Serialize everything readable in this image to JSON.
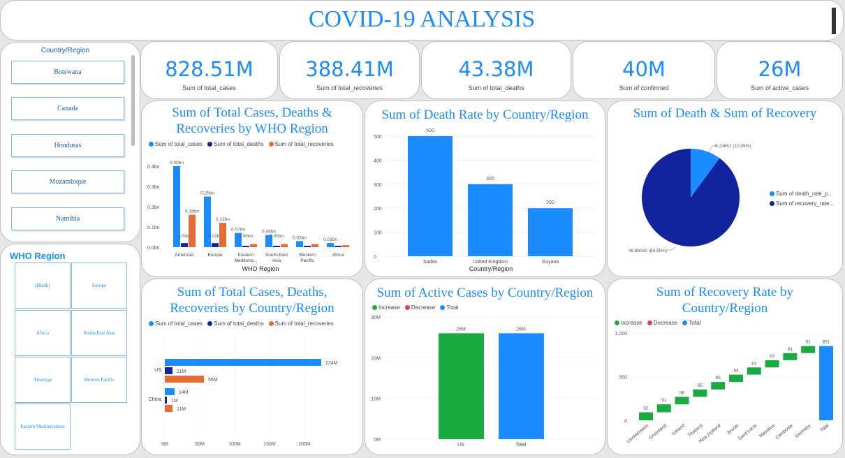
{
  "header": {
    "title": "COVID-19 ANALYSIS"
  },
  "country_slicer": {
    "title": "Country/Region",
    "items": [
      "Botswana",
      "Canada",
      "Honduras",
      "Mozambique",
      "Namibia"
    ]
  },
  "who_slicer": {
    "title": "WHO Region",
    "items": [
      "(Blank)",
      "Europe",
      "Africa",
      "South-East Asia",
      "Americas",
      "Western Pacific",
      "Eastern Mediterranean"
    ]
  },
  "kpis": [
    {
      "value": "828.51M",
      "label": "Sum of total_cases"
    },
    {
      "value": "388.41M",
      "label": "Sum of total_recoveries"
    },
    {
      "value": "43.38M",
      "label": "Sum of total_deaths"
    },
    {
      "value": "40M",
      "label": "Sum of confirmed"
    },
    {
      "value": "26M",
      "label": "Sum of active_cases"
    }
  ],
  "colors": {
    "accent": "#1a8cff",
    "navy": "#12239e",
    "orange": "#e66c37",
    "green": "#1aab40",
    "red": "#d64550"
  },
  "chart_data": [
    {
      "type": "bar",
      "title": "Sum of Total Cases, Deaths & Recoveries by WHO Region",
      "xlabel": "WHO Region",
      "categories": [
        "Americas",
        "Europe",
        "Eastern Mediterra...",
        "South-East Asia",
        "Western Pacific",
        "Africa"
      ],
      "series": [
        {
          "name": "Sum of total_cases",
          "values": [
            0.4,
            0.25,
            0.07,
            0.06,
            0.03,
            0.02
          ],
          "labels": [
            "0.40bn",
            "0.25bn",
            "0.07bn",
            "0.06bn",
            "0.03bn",
            "0.02bn"
          ]
        },
        {
          "name": "Sum of total_deaths",
          "values": [
            0.02,
            0.02,
            0.0,
            0.0,
            0.0,
            0.0
          ],
          "labels": [
            "0.02bn",
            "0.02bn",
            "0.00bn",
            "0.00bn",
            "",
            ""
          ]
        },
        {
          "name": "Sum of total_recoveries",
          "values": [
            0.16,
            0.12,
            0.015,
            0.015,
            0.015,
            0.01
          ],
          "labels": [
            "0.16bn",
            "0.12bn",
            "",
            "",
            "",
            ""
          ]
        }
      ],
      "yticks": [
        "0.0bn",
        "0.1bn",
        "0.2bn",
        "0.3bn",
        "0.4bn"
      ],
      "ylim": [
        0,
        0.4
      ]
    },
    {
      "type": "bar",
      "title": "Sum of Death Rate by Country/Region",
      "xlabel": "Country/Region",
      "categories": [
        "Sudan",
        "United Kingdom",
        "Guyana"
      ],
      "values": [
        500,
        300,
        200
      ],
      "yticks": [
        "0",
        "100",
        "200",
        "300",
        "400",
        "500"
      ],
      "ylim": [
        0,
        500
      ]
    },
    {
      "type": "pie",
      "title": "Sum of Death & Sum of Recovery",
      "slices": [
        {
          "name": "Sum of death_rate_p...",
          "value": 5.23651,
          "label": "5.23651 (10.05%)"
        },
        {
          "name": "Sum of recovery_rate...",
          "value": 46.88042,
          "label": "46.88042 (89.95%)"
        }
      ]
    },
    {
      "type": "bar",
      "title": "Sum of Total Cases, Deaths, Recoveries by Country/Region",
      "orientation": "horizontal",
      "categories": [
        "US",
        "China"
      ],
      "series": [
        {
          "name": "Sum of total_cases",
          "values": [
            224,
            14
          ],
          "labels": [
            "224M",
            "14M"
          ]
        },
        {
          "name": "Sum of total_deaths",
          "values": [
            11,
            1
          ],
          "labels": [
            "11M",
            "1M"
          ]
        },
        {
          "name": "Sum of total_recoveries",
          "values": [
            56,
            11
          ],
          "labels": [
            "56M",
            "11M"
          ]
        }
      ],
      "xticks": [
        "0M",
        "50M",
        "100M",
        "150M",
        "200M"
      ],
      "xlim": [
        0,
        240
      ]
    },
    {
      "type": "bar",
      "subtype": "waterfall",
      "title": "Sum of Active Cases by Country/Region",
      "legend": [
        "Increase",
        "Decrease",
        "Total"
      ],
      "categories": [
        "US",
        "Total"
      ],
      "values": [
        26,
        26
      ],
      "labels": [
        "26M",
        "26M"
      ],
      "yticks": [
        "0M",
        "10M",
        "20M",
        "30M"
      ],
      "ylim": [
        0,
        30
      ]
    },
    {
      "type": "bar",
      "subtype": "waterfall",
      "title": "Sum of Recovery Rate by Country/Region",
      "legend": [
        "Increase",
        "Decrease",
        "Total"
      ],
      "categories": [
        "Liechtenstein",
        "Greenland",
        "Iceland",
        "Thailand",
        "New Zealand",
        "Brunei",
        "Saint Lucia",
        "Mauritius",
        "Cambodia",
        "Germany",
        "Total"
      ],
      "values": [
        92,
        91,
        86,
        85,
        85,
        84,
        83,
        83,
        81,
        81,
        851
      ],
      "yticks": [
        "0",
        "500",
        "1,000"
      ],
      "ylim": [
        0,
        1000
      ]
    }
  ]
}
